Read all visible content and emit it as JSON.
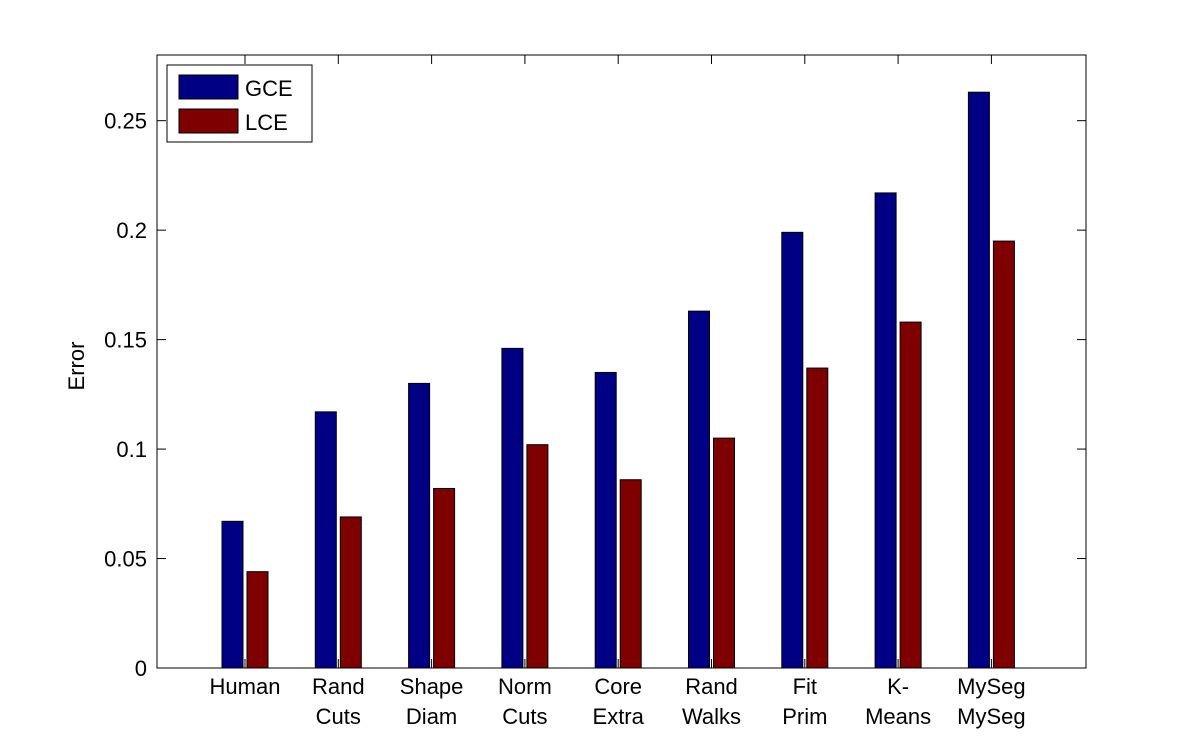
{
  "chart_data": {
    "type": "bar",
    "title": "",
    "xlabel": "",
    "ylabel": "Error",
    "ylim": [
      0,
      0.28
    ],
    "yticks": [
      {
        "value": 0,
        "label": "0"
      },
      {
        "value": 0.05,
        "label": "0.05"
      },
      {
        "value": 0.1,
        "label": "0.1"
      },
      {
        "value": 0.15,
        "label": "0.15"
      },
      {
        "value": 0.2,
        "label": "0.2"
      },
      {
        "value": 0.25,
        "label": "0.25"
      }
    ],
    "categories": [
      [
        "Human"
      ],
      [
        "Rand",
        "Cuts"
      ],
      [
        "Shape",
        "Diam"
      ],
      [
        "Norm",
        "Cuts"
      ],
      [
        "Core",
        "Extra"
      ],
      [
        "Rand",
        "Walks"
      ],
      [
        "Fit",
        "Prim"
      ],
      [
        "K-",
        "Means"
      ],
      [
        "MySeg",
        "MySeg"
      ]
    ],
    "series": [
      {
        "name": "GCE",
        "color": "#000085",
        "values": [
          0.067,
          0.117,
          0.13,
          0.146,
          0.135,
          0.163,
          0.199,
          0.217,
          0.263
        ]
      },
      {
        "name": "LCE",
        "color": "#7f0000",
        "values": [
          0.044,
          0.069,
          0.082,
          0.102,
          0.086,
          0.105,
          0.137,
          0.158,
          0.195
        ]
      }
    ],
    "grid": false,
    "legend_position": "top-left"
  }
}
